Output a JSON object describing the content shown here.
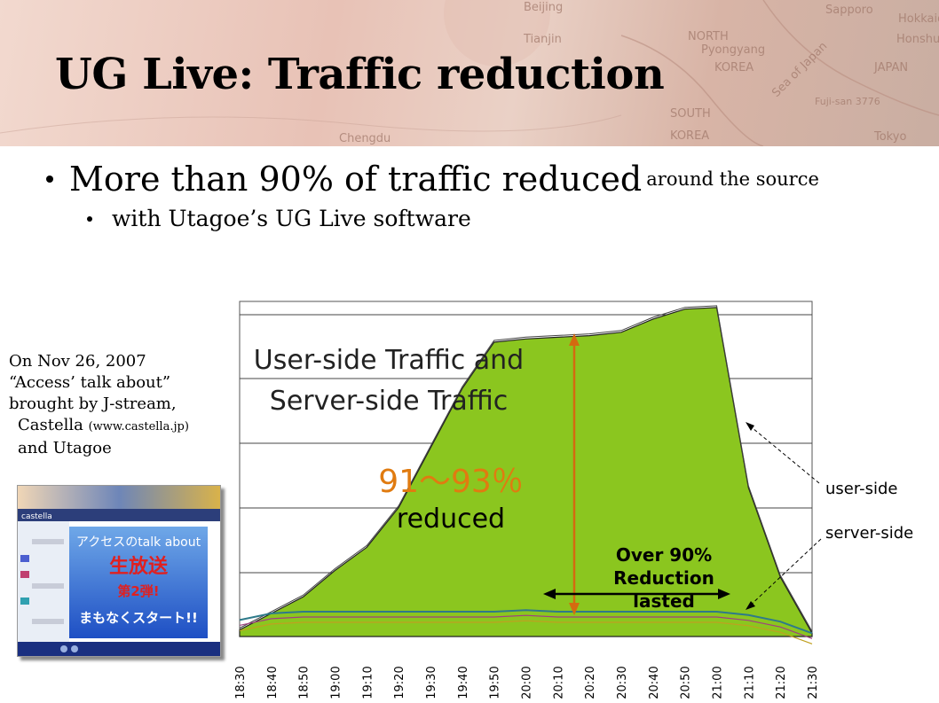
{
  "slide": {
    "title": "UG Live: Traffic reduction",
    "bullet_main": "More than 90% of traffic reduced",
    "bullet_main_suffix": "around the source",
    "bullet_sub": "with Utagoe’s UG Live software"
  },
  "banner_map_labels": [
    "Beijing",
    "Tianjin",
    "NORTH",
    "Pyongyang",
    "KOREA",
    "SOUTH",
    "KOREA",
    "Sea of Japan",
    "JAPAN",
    "Honshu",
    "Hokkaido",
    "Sapporo",
    "Tokyo",
    "Chengdu",
    "Fuji-san 3776"
  ],
  "side_note": {
    "line1": "On Nov 26, 2007",
    "line2": "“Access’ talk about”",
    "line3": "brought by J-stream,",
    "line4": "Castella",
    "line4_small": "(www.castella.jp)",
    "line5": "and Utagoe"
  },
  "thumbnail": {
    "logo": "castella",
    "text1": "アクセスのtalk about",
    "text2": "生放送",
    "text3": "第2弾!",
    "text4": "まもなくスタート!!"
  },
  "chart_data": {
    "type": "area",
    "title": "User-side Traffic and Server-side Traffic",
    "categories": [
      "18:30",
      "18:40",
      "18:50",
      "19:00",
      "19:10",
      "19:20",
      "19:30",
      "19:40",
      "19:50",
      "20:00",
      "20:10",
      "20:20",
      "20:30",
      "20:40",
      "20:50",
      "21:00",
      "21:10",
      "21:20",
      "21:30"
    ],
    "ylim": [
      0,
      100
    ],
    "series": [
      {
        "name": "user-side",
        "color": "#88c21c",
        "values": [
          2,
          7,
          12,
          20,
          27,
          39,
          57,
          75,
          89,
          90,
          90.5,
          91,
          92,
          96,
          99,
          99.5,
          45,
          18,
          1
        ]
      },
      {
        "name": "server-side",
        "color": "#4a8a9c",
        "values": [
          5,
          7,
          7.5,
          7.5,
          7.5,
          7.5,
          7.5,
          7.5,
          7.5,
          8,
          7.5,
          7.5,
          7.5,
          7.5,
          7.5,
          7.5,
          6.5,
          4.5,
          1
        ]
      }
    ],
    "annotations": {
      "reduction_pct": "91～93％",
      "reduction_label": "reduced",
      "lasted_line1": "Over 90%",
      "lasted_line2": "Reduction",
      "lasted_line3": "lasted",
      "user_label": "user-side",
      "server_label": "server-side"
    },
    "grid": true
  }
}
